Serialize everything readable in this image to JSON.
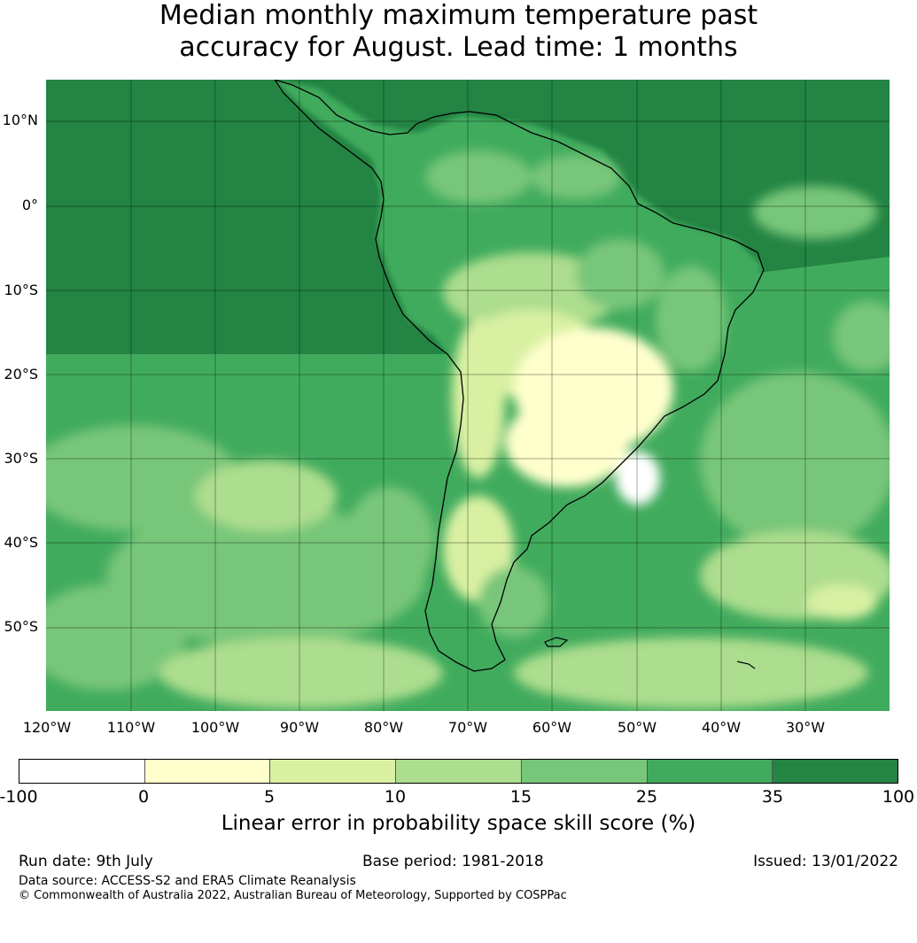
{
  "title_line1": "Median monthly maximum temperature past",
  "title_line2": "accuracy for August. Lead time: 1 months",
  "map": {
    "lat_labels": [
      "10°N",
      "0°",
      "10°S",
      "20°S",
      "30°S",
      "40°S",
      "50°S"
    ],
    "lon_labels": [
      "120°W",
      "110°W",
      "100°W",
      "90°W",
      "80°W",
      "70°W",
      "60°W",
      "50°W",
      "40°W",
      "30°W"
    ],
    "colors": {
      "ocean_dark": "#238443",
      "level_25_35": "#41ab5d",
      "level_15_25": "#78c679",
      "level_10_15": "#addd8e",
      "level_5_10": "#d9f0a3",
      "level_0_5": "#ffffcc",
      "coastline": "#000000"
    }
  },
  "colorbar": {
    "ticks": [
      "-100",
      "0",
      "5",
      "10",
      "15",
      "25",
      "35",
      "100"
    ],
    "colors": [
      "#ffffff",
      "#ffffcc",
      "#d9f0a3",
      "#addd8e",
      "#78c679",
      "#41ab5d",
      "#238443"
    ],
    "label": "Linear error in probability space skill score (%)"
  },
  "footer": {
    "run_date": "Run date: 9th July",
    "base_period": "Base period: 1981-2018",
    "issued": "Issued: 13/01/2022",
    "data_source": "Data source: ACCESS-S2 and ERA5 Climate Reanalysis",
    "copyright": "© Commonwealth of Australia 2022, Australian Bureau of Meteorology, Supported by COSPPac"
  }
}
